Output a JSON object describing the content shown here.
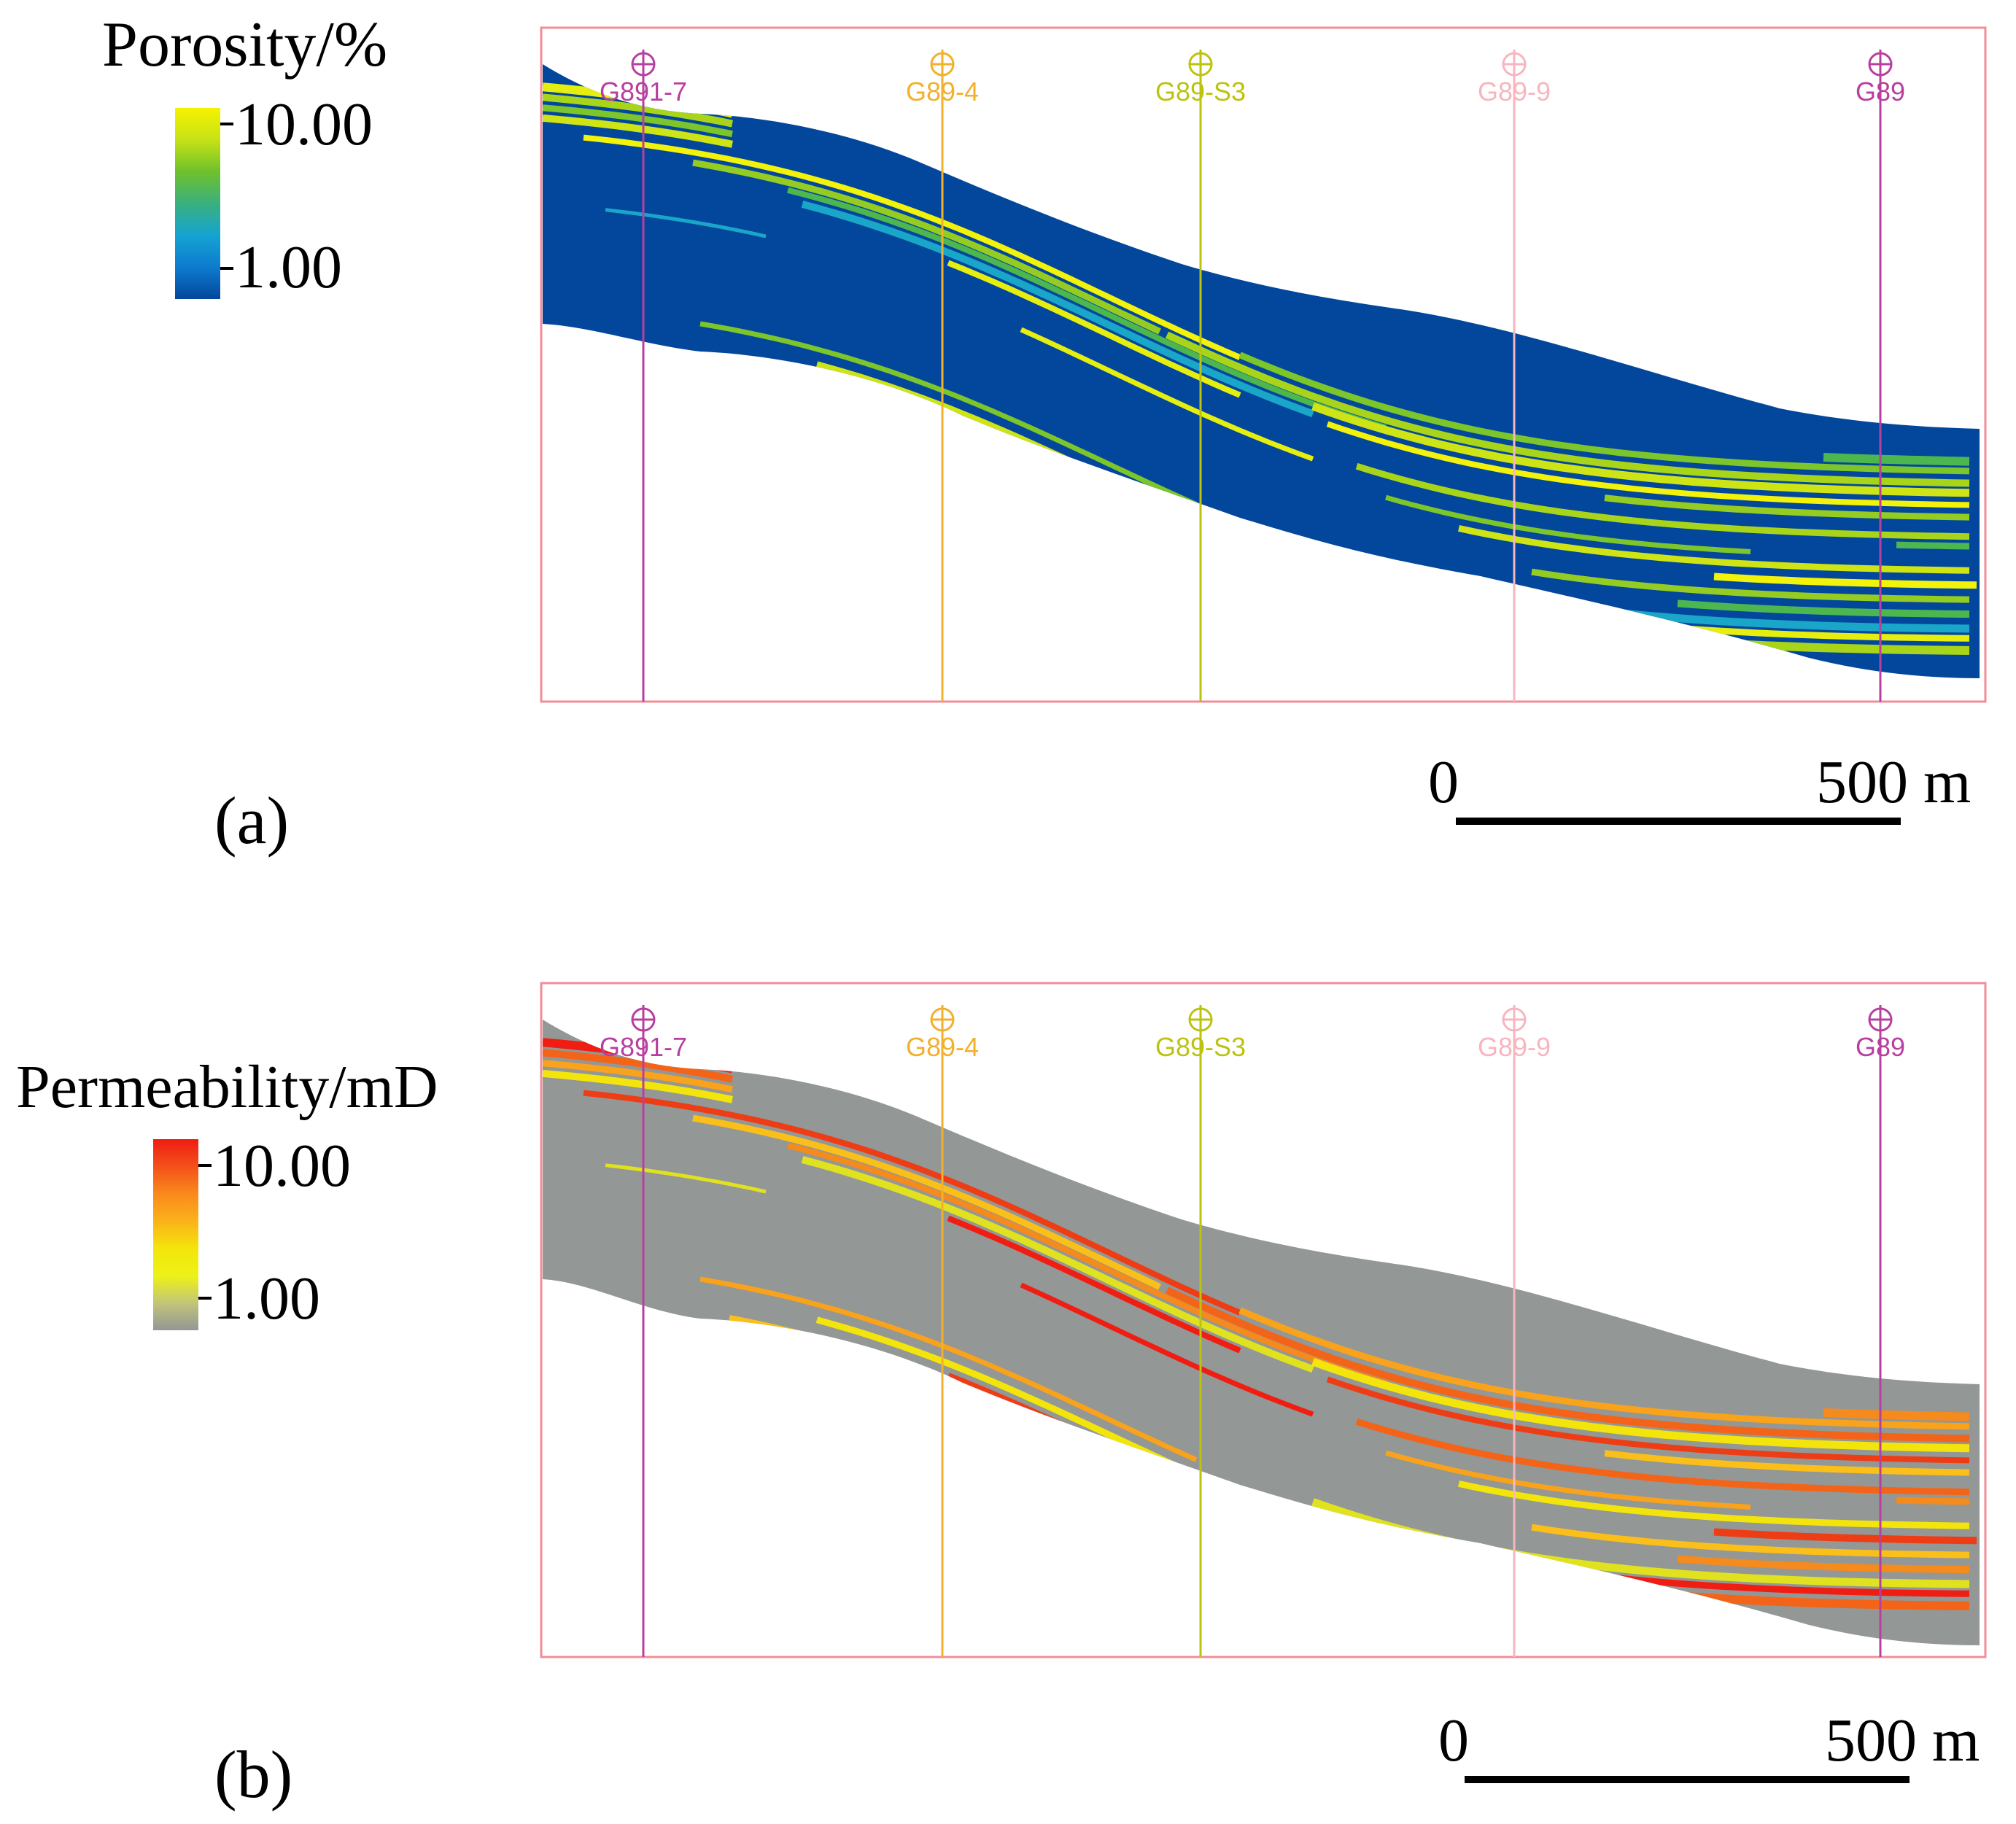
{
  "colors": {
    "background": "#ffffff",
    "frame": "#f28c9a",
    "porosity_matrix": "#03479c",
    "permeability_matrix": "#939795",
    "scalebar": "#000000",
    "text": "#000000"
  },
  "wells": [
    {
      "name": "G891-7",
      "color": "#b83fa0"
    },
    {
      "name": "G89-4",
      "color": "#f2b02c"
    },
    {
      "name": "G89-S3",
      "color": "#bcc30f"
    },
    {
      "name": "G89-9",
      "color": "#f7b6bf"
    },
    {
      "name": "G89",
      "color": "#b83fa0"
    }
  ],
  "panels": [
    {
      "id": "a",
      "label": "(a)",
      "property": "porosity",
      "legend": {
        "title": "Porosity/%",
        "max_label": "10.00",
        "min_label": "1.00",
        "gradient": [
          "#f6f201",
          "#c6e216",
          "#6fc12b",
          "#3ab07e",
          "#15a3d2",
          "#0d7bcf",
          "#03479c"
        ]
      },
      "band_colors": [
        "#e6ee10",
        "#a8d51a",
        "#7cc52a",
        "#cfe414",
        "#f2f20a",
        "#95cc22",
        "#4db74f",
        "#1aa6c9"
      ],
      "scalebar": {
        "start_label": "0",
        "end_label": "500 m"
      }
    },
    {
      "id": "b",
      "label": "(b)",
      "property": "permeability",
      "legend": {
        "title": "Permeability/mD",
        "max_label": "10.00",
        "min_label": "1.00",
        "gradient": [
          "#ee1c12",
          "#f4501a",
          "#f98a1c",
          "#fbb21a",
          "#f3e50b",
          "#eef216",
          "#c3c579",
          "#939795"
        ]
      },
      "band_colors": [
        "#f01e12",
        "#f46418",
        "#f9a21c",
        "#f3e50b",
        "#ee3c14",
        "#fbbf1a",
        "#f58a1d",
        "#e0e220"
      ],
      "scalebar": {
        "start_label": "0",
        "end_label": "500 m"
      }
    }
  ]
}
